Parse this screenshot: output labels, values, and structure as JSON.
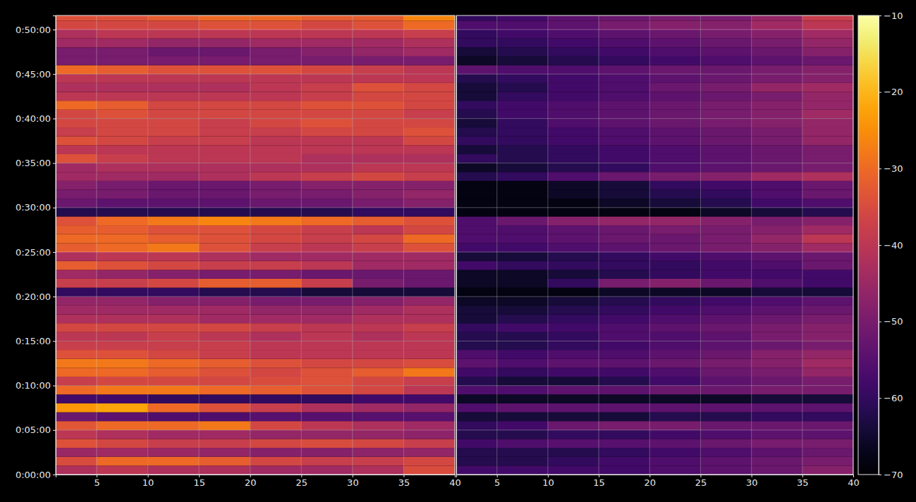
{
  "chart_data": {
    "type": "heatmap",
    "grid": true,
    "ylim": [
      0,
      3095
    ],
    "yticks": [
      {
        "value": 0,
        "label": "0:00:00"
      },
      {
        "value": 300,
        "label": "0:05:00"
      },
      {
        "value": 600,
        "label": "0:10:00"
      },
      {
        "value": 900,
        "label": "0:15:00"
      },
      {
        "value": 1200,
        "label": "0:20:00"
      },
      {
        "value": 1500,
        "label": "0:25:00"
      },
      {
        "value": 1800,
        "label": "0:30:00"
      },
      {
        "value": 2100,
        "label": "0:35:00"
      },
      {
        "value": 2400,
        "label": "0:40:00"
      },
      {
        "value": 2700,
        "label": "0:45:00"
      },
      {
        "value": 3000,
        "label": "0:50:00"
      }
    ],
    "y_edges": [
      0,
      60,
      120,
      180,
      240,
      300,
      360,
      420,
      480,
      540,
      600,
      660,
      720,
      780,
      840,
      900,
      960,
      1020,
      1080,
      1140,
      1200,
      1260,
      1320,
      1380,
      1440,
      1500,
      1560,
      1620,
      1680,
      1740,
      1800,
      1860,
      1920,
      1980,
      2040,
      2100,
      2160,
      2220,
      2280,
      2340,
      2400,
      2460,
      2520,
      2580,
      2640,
      2700,
      2760,
      2820,
      2880,
      2940,
      3000,
      3060,
      3095
    ],
    "colorbar": {
      "range": [
        -70,
        -10
      ],
      "ticks": [
        -70,
        -60,
        -50,
        -40,
        -30,
        -20,
        -10
      ]
    },
    "panels": [
      {
        "xlim": [
          1,
          40
        ],
        "xticks": [
          5,
          10,
          15,
          20,
          25,
          30,
          35,
          40
        ],
        "x_edges": [
          1,
          5,
          10,
          15,
          20,
          25,
          30,
          35,
          40
        ],
        "values": [
          [
            -42,
            -40,
            -42,
            -42,
            -44,
            -44,
            -42,
            -35
          ],
          [
            -35,
            -30,
            -30,
            -32,
            -36,
            -38,
            -38,
            -36
          ],
          [
            -45,
            -44,
            -45,
            -46,
            -48,
            -48,
            -47,
            -46
          ],
          [
            -34,
            -36,
            -38,
            -38,
            -36,
            -35,
            -36,
            -38
          ],
          [
            -40,
            -42,
            -44,
            -44,
            -46,
            -46,
            -46,
            -47
          ],
          [
            -33,
            -30,
            -30,
            -28,
            -36,
            -40,
            -42,
            -44
          ],
          [
            -52,
            -54,
            -56,
            -56,
            -55,
            -55,
            -55,
            -55
          ],
          [
            -24,
            -22,
            -30,
            -34,
            -38,
            -42,
            -44,
            -46
          ],
          [
            -58,
            -58,
            -60,
            -60,
            -60,
            -60,
            -58,
            -58
          ],
          [
            -30,
            -28,
            -28,
            -30,
            -32,
            -34,
            -36,
            -40
          ],
          [
            -38,
            -36,
            -36,
            -36,
            -35,
            -34,
            -36,
            -38
          ],
          [
            -30,
            -30,
            -32,
            -34,
            -36,
            -34,
            -32,
            -28
          ],
          [
            -28,
            -28,
            -30,
            -32,
            -34,
            -36,
            -36,
            -35
          ],
          [
            -34,
            -34,
            -36,
            -38,
            -40,
            -40,
            -40,
            -40
          ],
          [
            -38,
            -38,
            -38,
            -38,
            -40,
            -40,
            -40,
            -40
          ],
          [
            -40,
            -40,
            -38,
            -40,
            -42,
            -40,
            -42,
            -40
          ],
          [
            -36,
            -36,
            -36,
            -36,
            -38,
            -40,
            -40,
            -38
          ],
          [
            -42,
            -42,
            -42,
            -44,
            -44,
            -44,
            -42,
            -42
          ],
          [
            -44,
            -44,
            -44,
            -44,
            -46,
            -46,
            -44,
            -42
          ],
          [
            -46,
            -46,
            -48,
            -48,
            -50,
            -50,
            -48,
            -46
          ],
          [
            -60,
            -60,
            -60,
            -62,
            -62,
            -64,
            -64,
            -64
          ],
          [
            -38,
            -38,
            -36,
            -32,
            -32,
            -38,
            -50,
            -52
          ],
          [
            -44,
            -46,
            -48,
            -50,
            -50,
            -52,
            -52,
            -52
          ],
          [
            -32,
            -34,
            -36,
            -38,
            -38,
            -40,
            -44,
            -44
          ],
          [
            -42,
            -40,
            -40,
            -42,
            -44,
            -44,
            -44,
            -44
          ],
          [
            -32,
            -30,
            -28,
            -34,
            -38,
            -40,
            -38,
            -34
          ],
          [
            -30,
            -30,
            -32,
            -34,
            -36,
            -38,
            -36,
            -30
          ],
          [
            -32,
            -32,
            -34,
            -34,
            -36,
            -38,
            -40,
            -36
          ],
          [
            -34,
            -30,
            -28,
            -26,
            -28,
            -30,
            -32,
            -34
          ],
          [
            -62,
            -62,
            -62,
            -62,
            -62,
            -62,
            -60,
            -60
          ],
          [
            -52,
            -54,
            -54,
            -54,
            -52,
            -52,
            -50,
            -48
          ],
          [
            -50,
            -50,
            -52,
            -52,
            -50,
            -50,
            -48,
            -46
          ],
          [
            -48,
            -50,
            -52,
            -52,
            -50,
            -48,
            -48,
            -48
          ],
          [
            -44,
            -44,
            -44,
            -42,
            -40,
            -38,
            -36,
            -38
          ],
          [
            -44,
            -42,
            -42,
            -42,
            -42,
            -42,
            -40,
            -40
          ],
          [
            -34,
            -38,
            -40,
            -40,
            -40,
            -42,
            -42,
            -42
          ],
          [
            -40,
            -40,
            -40,
            -40,
            -40,
            -40,
            -40,
            -40
          ],
          [
            -34,
            -36,
            -38,
            -38,
            -40,
            -40,
            -40,
            -36
          ],
          [
            -38,
            -36,
            -36,
            -38,
            -38,
            -36,
            -36,
            -34
          ],
          [
            -36,
            -36,
            -36,
            -38,
            -36,
            -34,
            -36,
            -36
          ],
          [
            -36,
            -34,
            -36,
            -36,
            -36,
            -36,
            -36,
            -38
          ],
          [
            -30,
            -32,
            -36,
            -36,
            -36,
            -34,
            -34,
            -36
          ],
          [
            -40,
            -40,
            -40,
            -40,
            -40,
            -38,
            -36,
            -36
          ],
          [
            -42,
            -42,
            -42,
            -42,
            -40,
            -38,
            -34,
            -36
          ],
          [
            -40,
            -40,
            -40,
            -40,
            -40,
            -40,
            -40,
            -40
          ],
          [
            -30,
            -32,
            -34,
            -34,
            -34,
            -36,
            -38,
            -40
          ],
          [
            -50,
            -50,
            -50,
            -50,
            -50,
            -50,
            -50,
            -50
          ],
          [
            -50,
            -50,
            -52,
            -52,
            -50,
            -48,
            -46,
            -44
          ],
          [
            -44,
            -44,
            -46,
            -46,
            -44,
            -44,
            -44,
            -42
          ],
          [
            -42,
            -40,
            -40,
            -40,
            -40,
            -40,
            -40,
            -38
          ],
          [
            -36,
            -36,
            -36,
            -34,
            -34,
            -36,
            -34,
            -30
          ],
          [
            -34,
            -34,
            -32,
            -30,
            -30,
            -32,
            -32,
            -26
          ]
        ]
      },
      {
        "xlim": [
          1,
          40
        ],
        "xticks": [
          5,
          10,
          15,
          20,
          25,
          30,
          35,
          40
        ],
        "x_edges": [
          1,
          5,
          10,
          15,
          20,
          25,
          30,
          35,
          40
        ],
        "tick_labels": "x",
        "values": [
          [
            -58,
            -58,
            -58,
            -58,
            -56,
            -54,
            -52,
            -48
          ],
          [
            -62,
            -62,
            -60,
            -58,
            -56,
            -54,
            -52,
            -50
          ],
          [
            -62,
            -62,
            -62,
            -60,
            -58,
            -56,
            -54,
            -52
          ],
          [
            -58,
            -56,
            -55,
            -55,
            -54,
            -52,
            -50,
            -50
          ],
          [
            -62,
            -62,
            -60,
            -60,
            -58,
            -56,
            -54,
            -54
          ],
          [
            -60,
            -58,
            -52,
            -50,
            -50,
            -52,
            -52,
            -52
          ],
          [
            -64,
            -64,
            -64,
            -64,
            -62,
            -62,
            -60,
            -60
          ],
          [
            -56,
            -54,
            -54,
            -54,
            -54,
            -54,
            -54,
            -54
          ],
          [
            -66,
            -66,
            -66,
            -66,
            -66,
            -66,
            -64,
            -64
          ],
          [
            -56,
            -56,
            -54,
            -54,
            -52,
            -52,
            -50,
            -50
          ],
          [
            -62,
            -64,
            -64,
            -62,
            -58,
            -54,
            -52,
            -50
          ],
          [
            -58,
            -60,
            -58,
            -58,
            -56,
            -52,
            -50,
            -46
          ],
          [
            -54,
            -56,
            -54,
            -54,
            -52,
            -50,
            -48,
            -44
          ],
          [
            -56,
            -58,
            -56,
            -56,
            -54,
            -52,
            -48,
            -46
          ],
          [
            -62,
            -62,
            -60,
            -58,
            -56,
            -54,
            -52,
            -50
          ],
          [
            -62,
            -62,
            -60,
            -56,
            -56,
            -54,
            -50,
            -48
          ],
          [
            -60,
            -58,
            -58,
            -56,
            -54,
            -52,
            -50,
            -48
          ],
          [
            -64,
            -62,
            -60,
            -58,
            -56,
            -54,
            -52,
            -50
          ],
          [
            -64,
            -64,
            -62,
            -60,
            -58,
            -56,
            -54,
            -52
          ],
          [
            -66,
            -66,
            -64,
            -62,
            -60,
            -58,
            -56,
            -54
          ],
          [
            -68,
            -68,
            -68,
            -66,
            -66,
            -66,
            -64,
            -64
          ],
          [
            -66,
            -66,
            -60,
            -50,
            -48,
            -52,
            -56,
            -58
          ],
          [
            -66,
            -66,
            -64,
            -62,
            -60,
            -58,
            -58,
            -58
          ],
          [
            -58,
            -60,
            -60,
            -60,
            -60,
            -58,
            -56,
            -52
          ],
          [
            -64,
            -64,
            -62,
            -60,
            -58,
            -56,
            -54,
            -52
          ],
          [
            -58,
            -58,
            -56,
            -54,
            -52,
            -50,
            -48,
            -44
          ],
          [
            -56,
            -56,
            -54,
            -52,
            -52,
            -50,
            -46,
            -40
          ],
          [
            -56,
            -56,
            -54,
            -52,
            -50,
            -50,
            -48,
            -44
          ],
          [
            -56,
            -52,
            -48,
            -46,
            -46,
            -48,
            -50,
            -48
          ],
          [
            -68,
            -68,
            -68,
            -68,
            -68,
            -66,
            -64,
            -62
          ],
          [
            -68,
            -68,
            -68,
            -66,
            -64,
            -62,
            -58,
            -56
          ],
          [
            -68,
            -68,
            -66,
            -64,
            -62,
            -60,
            -56,
            -52
          ],
          [
            -68,
            -68,
            -66,
            -64,
            -60,
            -58,
            -56,
            -52
          ],
          [
            -62,
            -60,
            -56,
            -52,
            -50,
            -48,
            -44,
            -42
          ],
          [
            -66,
            -64,
            -62,
            -60,
            -56,
            -54,
            -52,
            -50
          ],
          [
            -60,
            -62,
            -60,
            -58,
            -56,
            -54,
            -52,
            -50
          ],
          [
            -64,
            -62,
            -60,
            -58,
            -56,
            -54,
            -52,
            -50
          ],
          [
            -60,
            -60,
            -58,
            -56,
            -54,
            -52,
            -50,
            -46
          ],
          [
            -62,
            -60,
            -58,
            -56,
            -54,
            -52,
            -50,
            -46
          ],
          [
            -64,
            -60,
            -56,
            -54,
            -52,
            -50,
            -48,
            -46
          ],
          [
            -62,
            -58,
            -56,
            -54,
            -52,
            -50,
            -48,
            -44
          ],
          [
            -60,
            -58,
            -56,
            -54,
            -52,
            -50,
            -48,
            -46
          ],
          [
            -64,
            -60,
            -58,
            -56,
            -54,
            -52,
            -50,
            -46
          ],
          [
            -64,
            -62,
            -58,
            -56,
            -52,
            -50,
            -46,
            -44
          ],
          [
            -62,
            -60,
            -58,
            -56,
            -54,
            -52,
            -50,
            -48
          ],
          [
            -54,
            -56,
            -56,
            -54,
            -52,
            -52,
            -50,
            -48
          ],
          [
            -66,
            -64,
            -62,
            -60,
            -58,
            -56,
            -54,
            -52
          ],
          [
            -64,
            -62,
            -60,
            -58,
            -56,
            -54,
            -52,
            -48
          ],
          [
            -60,
            -60,
            -58,
            -56,
            -54,
            -52,
            -50,
            -46
          ],
          [
            -60,
            -58,
            -56,
            -54,
            -52,
            -50,
            -48,
            -44
          ],
          [
            -56,
            -56,
            -54,
            -50,
            -48,
            -48,
            -44,
            -40
          ],
          [
            -60,
            -58,
            -54,
            -52,
            -50,
            -50,
            -46,
            -38
          ]
        ]
      }
    ]
  }
}
